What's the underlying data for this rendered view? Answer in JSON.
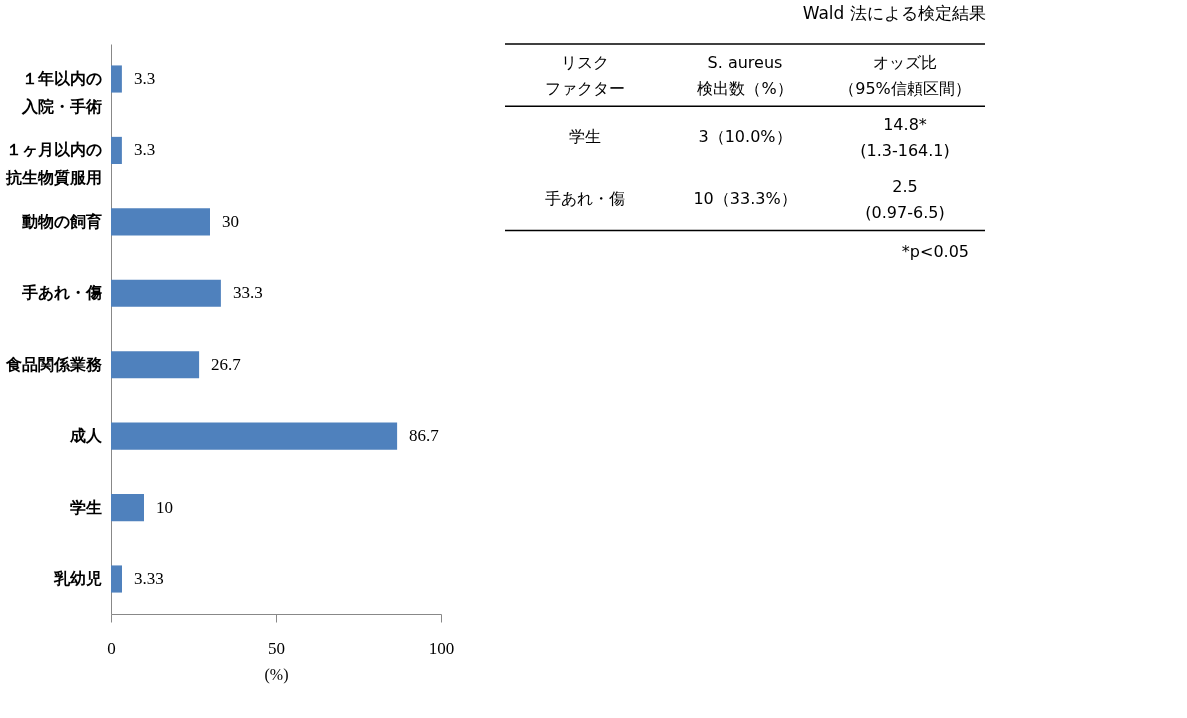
{
  "chart_data": [
    {
      "type": "bar",
      "orientation": "horizontal",
      "categories": [
        "１年以内の入院・手術",
        "１ヶ月以内の抗生物質服用",
        "動物の飼育",
        "手あれ・傷",
        "食品関係業務",
        "成人",
        "学生",
        "乳幼児"
      ],
      "values": [
        3.3,
        3.3,
        30,
        33.3,
        26.7,
        86.7,
        10,
        3.33
      ],
      "color": "#4f81bd",
      "xlim": [
        0,
        100
      ],
      "xticks": [
        0,
        50,
        100
      ],
      "xlabel": "(%)",
      "data_labels": true,
      "grid": false
    },
    {
      "type": "other",
      "title": "Wald 法による検定結果",
      "annotations": [
        "リスク",
        "ファクター",
        "S. aureus",
        "検出数（%）",
        "オッズ比",
        "（95%信頼区間）",
        "学生",
        "3（10.0%）",
        "14.8*",
        "(1.3-164.1)",
        "手あれ・傷",
        "10（33.3%）",
        "2.5",
        "(0.97-6.5)",
        "*p<0.05"
      ]
    }
  ]
}
